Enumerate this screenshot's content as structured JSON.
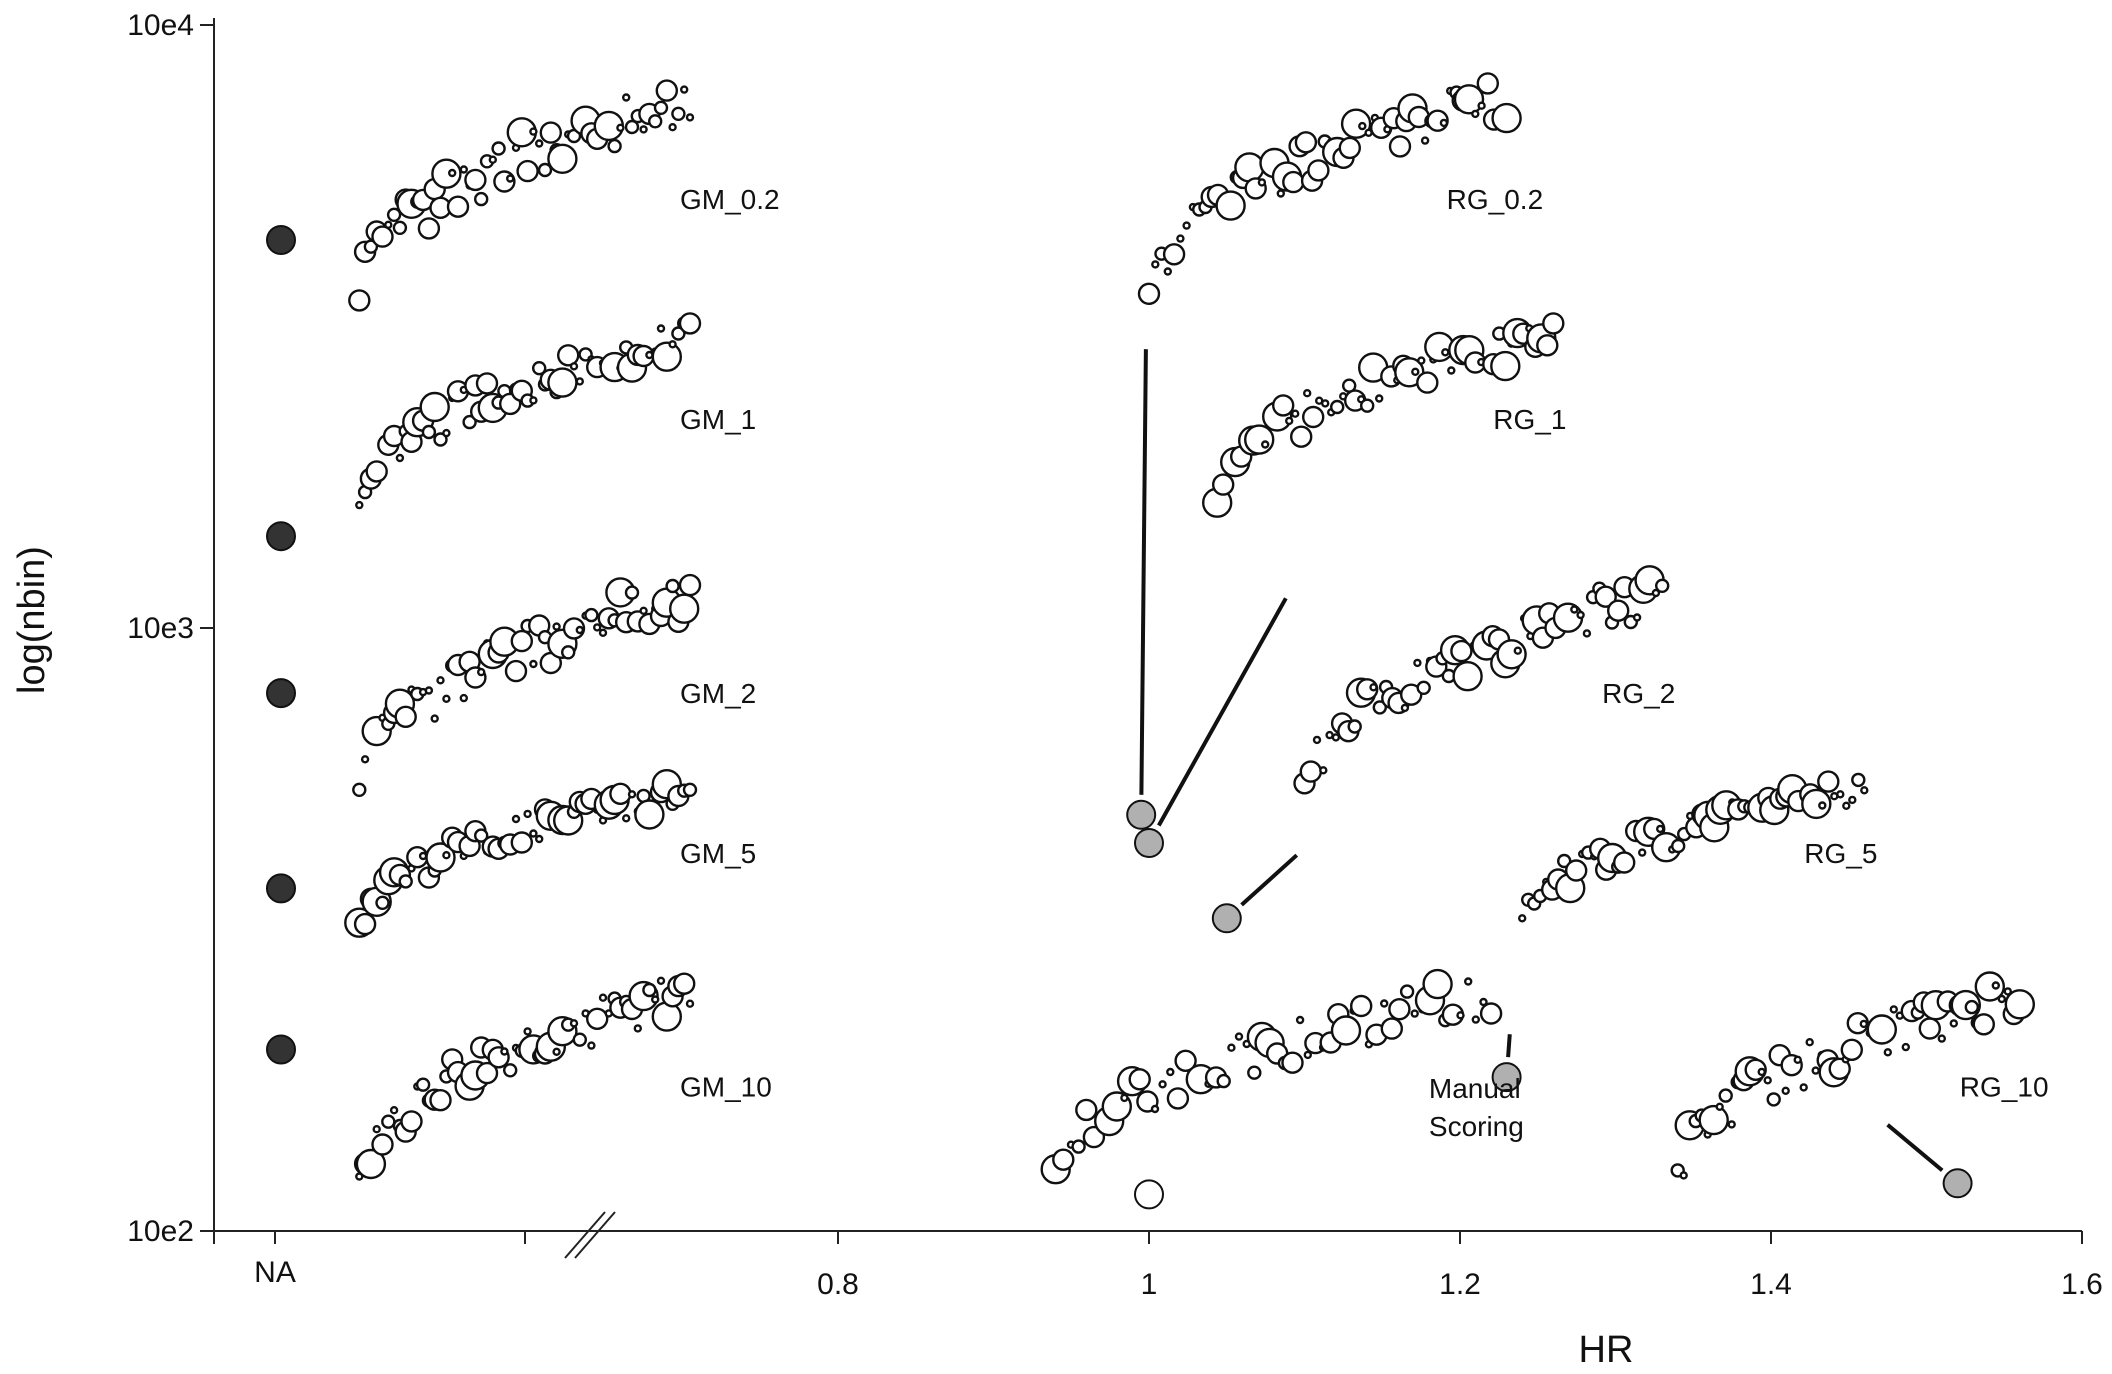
{
  "chart_data": {
    "type": "scatter",
    "xlabel": "HR",
    "ylabel": "log(nbin)",
    "xlim": [
      0.6,
      1.6
    ],
    "x_ticks": [
      "0.8",
      "1",
      "1.2",
      "1.4",
      "1.6"
    ],
    "x_na_label": "NA",
    "y_ticks": [
      "10e2",
      "10e3",
      "10e4"
    ],
    "ylim": [
      100,
      10000
    ],
    "y_scale": "log",
    "axis_break": true,
    "colors": {
      "na_point": "#333333",
      "reference_point": "#b0b0b0",
      "cloud": "#ffffff",
      "outline": "#111111"
    },
    "groups": [
      {
        "label": "GM_0.2",
        "x": [
          0.05,
          0.45
        ],
        "y": [
          3000,
          8000
        ]
      },
      {
        "label": "GM_1",
        "x": [
          0.05,
          0.45
        ],
        "y": [
          1400,
          3200
        ]
      },
      {
        "label": "GM_2",
        "x": [
          0.05,
          0.45
        ],
        "y": [
          460,
          1200
        ]
      },
      {
        "label": "GM_5",
        "x": [
          0.05,
          0.45
        ],
        "y": [
          290,
          560
        ]
      },
      {
        "label": "GM_10",
        "x": [
          0.05,
          0.45
        ],
        "y": [
          105,
          260
        ]
      },
      {
        "label": "RG_0.2",
        "x": [
          1.0,
          1.23
        ],
        "y": [
          3000,
          8000
        ]
      },
      {
        "label": "RG_1",
        "x": [
          1.04,
          1.26
        ],
        "y": [
          1400,
          3200
        ]
      },
      {
        "label": "RG_2",
        "x": [
          1.1,
          1.33
        ],
        "y": [
          460,
          1200
        ]
      },
      {
        "label": "RG_5",
        "x": [
          1.24,
          1.46
        ],
        "y": [
          290,
          560
        ]
      },
      {
        "label": "RG_10",
        "x": [
          1.34,
          1.56
        ],
        "y": [
          105,
          260
        ]
      },
      {
        "label_lines": [
          "Manual",
          "Scoring"
        ],
        "x": [
          0.94,
          1.22
        ],
        "y": [
          105,
          260
        ]
      }
    ],
    "na_points": [
      {
        "group": "GM_0.2",
        "y": 4400
      },
      {
        "group": "GM_1",
        "y": 1420
      },
      {
        "group": "GM_2",
        "y": 780
      },
      {
        "group": "GM_5",
        "y": 370
      },
      {
        "group": "GM_10",
        "y": 200
      }
    ],
    "reference_points": [
      {
        "group": "RG_0.2",
        "x": 0.995,
        "y": 490
      },
      {
        "group": "RG_1",
        "x": 1.0,
        "y": 440
      },
      {
        "group": "RG_2",
        "x": 1.05,
        "y": 330
      },
      {
        "group": "RG_5",
        "x": 1.23,
        "y": 180
      },
      {
        "group": "RG_10",
        "x": 1.52,
        "y": 120
      },
      {
        "group": "Manual Scoring",
        "x": 1.0,
        "y": 115,
        "open": true
      }
    ]
  }
}
